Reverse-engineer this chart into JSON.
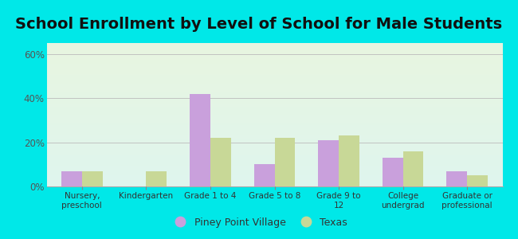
{
  "title": "School Enrollment by Level of School for Male Students",
  "categories": [
    "Nursery,\npreschool",
    "Kindergarten",
    "Grade 1 to 4",
    "Grade 5 to 8",
    "Grade 9 to\n12",
    "College\nundergrad",
    "Graduate or\nprofessional"
  ],
  "piney_point": [
    7,
    0,
    42,
    10,
    21,
    13,
    7
  ],
  "texas": [
    7,
    7,
    22,
    22,
    23,
    16,
    5
  ],
  "piney_color": "#c9a0dc",
  "texas_color": "#c8d897",
  "background_color": "#00e8e8",
  "plot_bg_color_top": "#e8f5e0",
  "plot_bg_color_bottom": "#dff5ee",
  "yticks": [
    0,
    20,
    40,
    60
  ],
  "ylim": [
    0,
    65
  ],
  "legend_labels": [
    "Piney Point Village",
    "Texas"
  ],
  "title_fontsize": 14,
  "bar_width": 0.32
}
